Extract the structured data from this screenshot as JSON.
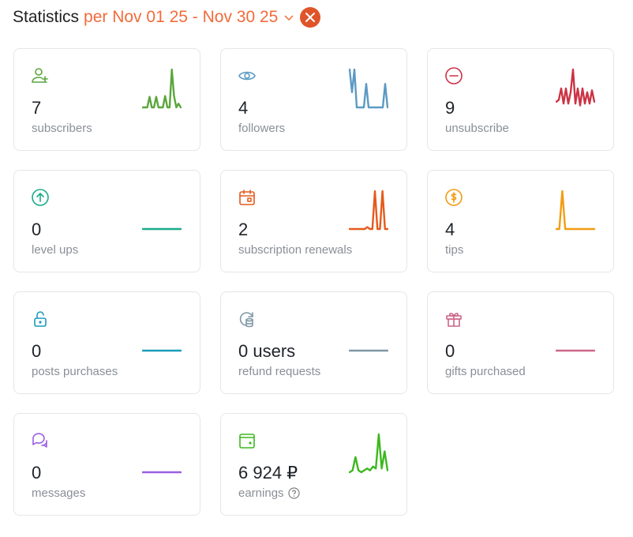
{
  "header": {
    "title": "Statistics",
    "range": "per Nov 01 25 - Nov 30 25",
    "accent": "#f26b3a",
    "close_color": "#e0542a"
  },
  "cards": [
    {
      "id": "subscribers",
      "icon": "user-plus-icon",
      "value": "7",
      "label": "subscribers",
      "color": "#5aa63c",
      "spark": [
        0,
        0,
        0,
        0.28,
        0,
        0,
        0.28,
        0,
        0,
        0,
        0.3,
        0,
        0,
        1,
        0.3,
        0,
        0.1,
        0
      ]
    },
    {
      "id": "followers",
      "icon": "eye-icon",
      "value": "4",
      "label": "followers",
      "color": "#5b9ac4",
      "spark": [
        1,
        0.4,
        1,
        0,
        0,
        0,
        0,
        0.62,
        0,
        0,
        0,
        0,
        0,
        0,
        0,
        0.62,
        0
      ]
    },
    {
      "id": "unsubscribe",
      "icon": "minus-circle-icon",
      "value": "9",
      "label": "unsubscribe",
      "color": "#cc3344",
      "spark": [
        0.15,
        0.2,
        0.5,
        0.1,
        0.5,
        0.1,
        0.4,
        1,
        0.1,
        0.5,
        0.05,
        0.5,
        0.1,
        0.4,
        0.1,
        0.45,
        0.15
      ]
    },
    {
      "id": "level_ups",
      "icon": "arrow-up-circle-icon",
      "value": "0",
      "label": "level ups",
      "color": "#1aab8a",
      "spark": [
        0,
        0
      ]
    },
    {
      "id": "renewals",
      "icon": "calendar-icon",
      "value": "2",
      "label": "subscription renewals",
      "color": "#e55a1c",
      "spark": [
        0,
        0,
        0,
        0,
        0,
        0,
        0,
        0.05,
        0,
        0,
        1,
        0,
        0,
        1,
        0,
        0
      ]
    },
    {
      "id": "tips",
      "icon": "dollar-circle-icon",
      "value": "4",
      "label": "tips",
      "color": "#f39c12",
      "spark": [
        0,
        0,
        1,
        0,
        0,
        0,
        0,
        0,
        0,
        0,
        0,
        0,
        0,
        0
      ]
    },
    {
      "id": "posts_purchases",
      "icon": "lock-open-icon",
      "value": "0",
      "label": "posts purchases",
      "color": "#1a9bba",
      "spark": [
        0,
        0
      ]
    },
    {
      "id": "refund_requests",
      "icon": "refund-coins-icon",
      "value": "0 users",
      "label": "refund requests",
      "color": "#7f97a6",
      "spark": [
        0,
        0
      ]
    },
    {
      "id": "gifts",
      "icon": "gift-icon",
      "value": "0",
      "label": "gifts purchased",
      "color": "#cc6688",
      "spark": [
        0,
        0
      ]
    },
    {
      "id": "messages",
      "icon": "chat-bubbles-icon",
      "value": "0",
      "label": "messages",
      "color": "#9b5fe0",
      "spark": [
        0,
        0
      ]
    },
    {
      "id": "earnings",
      "icon": "wallet-icon",
      "value": "6 924 ₽",
      "label": "earnings",
      "color": "#3cb81e",
      "spark": [
        0,
        0.05,
        0.4,
        0.05,
        0,
        0.05,
        0.1,
        0.05,
        0.15,
        0.1,
        1,
        0.1,
        0.55,
        0.05
      ],
      "help": true
    }
  ]
}
